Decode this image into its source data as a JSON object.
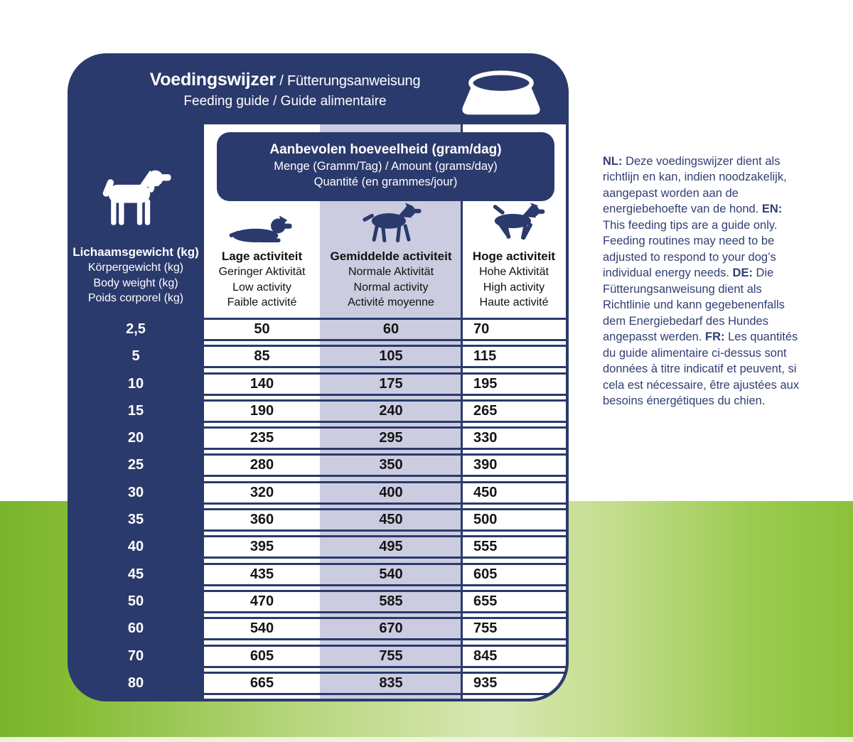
{
  "panel": {
    "title_bold": "Voedingswijzer",
    "title_rest": " / Fütterungsanweisung",
    "subtitle": "Feeding guide / Guide alimentaire"
  },
  "table": {
    "header_box": {
      "line1": "Aanbevolen hoeveelheid (gram/dag)",
      "line2": "Menge (Gramm/Tag) / Amount (grams/day)",
      "line3": "Quantité (en grammes/jour)"
    },
    "weight_header": {
      "lines": [
        "Lichaamsgewicht (kg)",
        "Körpergewicht (kg)",
        "Body weight (kg)",
        "Poids corporel (kg)"
      ]
    },
    "columns": [
      {
        "icon": "lying-dog-icon",
        "lines": [
          "Lage activiteit",
          "Geringer Aktivität",
          "Low activity",
          "Faible activité"
        ]
      },
      {
        "icon": "walking-dog-icon",
        "lines": [
          "Gemiddelde activiteit",
          "Normale Aktivität",
          "Normal activity",
          "Activité moyenne"
        ]
      },
      {
        "icon": "running-dog-icon",
        "lines": [
          "Hoge activiteit",
          "Hohe Aktivität",
          "High activity",
          "Haute activité"
        ]
      }
    ],
    "rows": [
      {
        "weight": "2,5",
        "low": "50",
        "normal": "60",
        "high": "70"
      },
      {
        "weight": "5",
        "low": "85",
        "normal": "105",
        "high": "115"
      },
      {
        "weight": "10",
        "low": "140",
        "normal": "175",
        "high": "195"
      },
      {
        "weight": "15",
        "low": "190",
        "normal": "240",
        "high": "265"
      },
      {
        "weight": "20",
        "low": "235",
        "normal": "295",
        "high": "330"
      },
      {
        "weight": "25",
        "low": "280",
        "normal": "350",
        "high": "390"
      },
      {
        "weight": "30",
        "low": "320",
        "normal": "400",
        "high": "450"
      },
      {
        "weight": "35",
        "low": "360",
        "normal": "450",
        "high": "500"
      },
      {
        "weight": "40",
        "low": "395",
        "normal": "495",
        "high": "555"
      },
      {
        "weight": "45",
        "low": "435",
        "normal": "540",
        "high": "605"
      },
      {
        "weight": "50",
        "low": "470",
        "normal": "585",
        "high": "655"
      },
      {
        "weight": "60",
        "low": "540",
        "normal": "670",
        "high": "755"
      },
      {
        "weight": "70",
        "low": "605",
        "normal": "755",
        "high": "845"
      },
      {
        "weight": "80",
        "low": "665",
        "normal": "835",
        "high": "935"
      }
    ]
  },
  "notes": {
    "segments": [
      {
        "label": "NL:",
        "text": "Deze voedingswijzer dient als richtlijn en kan, indien noodzakelijk, aangepast worden aan de energiebehoefte van de hond."
      },
      {
        "label": "EN:",
        "text": "This feeding tips are a guide only. Feeding routines may need to be adjusted to respond to your dog’s individual energy needs."
      },
      {
        "label": "DE:",
        "text": "Die Fütterungsanweisung dient als Richtlinie und kann gegebenenfalls dem Energiebedarf des Hundes angepasst werden."
      },
      {
        "label": "FR:",
        "text": "Les quantités du guide alimentaire ci-dessus sont données à titre indicatif et peuvent, si cela est nécessaire, être ajustées aux besoins énergétiques du chien."
      }
    ]
  },
  "colors": {
    "navy": "#2b3a6c",
    "lavender_highlight": "#cbcce0",
    "green_bright": "#8ac23a",
    "green_light": "#d9e7b2",
    "note_text": "#303e74"
  },
  "chart_data": {
    "type": "table",
    "title": "Aanbevolen hoeveelheid (gram/dag)",
    "row_header": "Lichaamsgewicht (kg)",
    "columns": [
      "Lage activiteit",
      "Gemiddelde activiteit",
      "Hoge activiteit"
    ],
    "body_weight_kg": [
      2.5,
      5,
      10,
      15,
      20,
      25,
      30,
      35,
      40,
      45,
      50,
      60,
      70,
      80
    ],
    "series": [
      {
        "name": "Lage activiteit (g/dag)",
        "values": [
          50,
          85,
          140,
          190,
          235,
          280,
          320,
          360,
          395,
          435,
          470,
          540,
          605,
          665
        ]
      },
      {
        "name": "Gemiddelde activiteit (g/dag)",
        "values": [
          60,
          105,
          175,
          240,
          295,
          350,
          400,
          450,
          495,
          540,
          585,
          670,
          755,
          835
        ]
      },
      {
        "name": "Hoge activiteit (g/dag)",
        "values": [
          70,
          115,
          195,
          265,
          330,
          390,
          450,
          500,
          555,
          605,
          655,
          755,
          845,
          935
        ]
      }
    ]
  }
}
